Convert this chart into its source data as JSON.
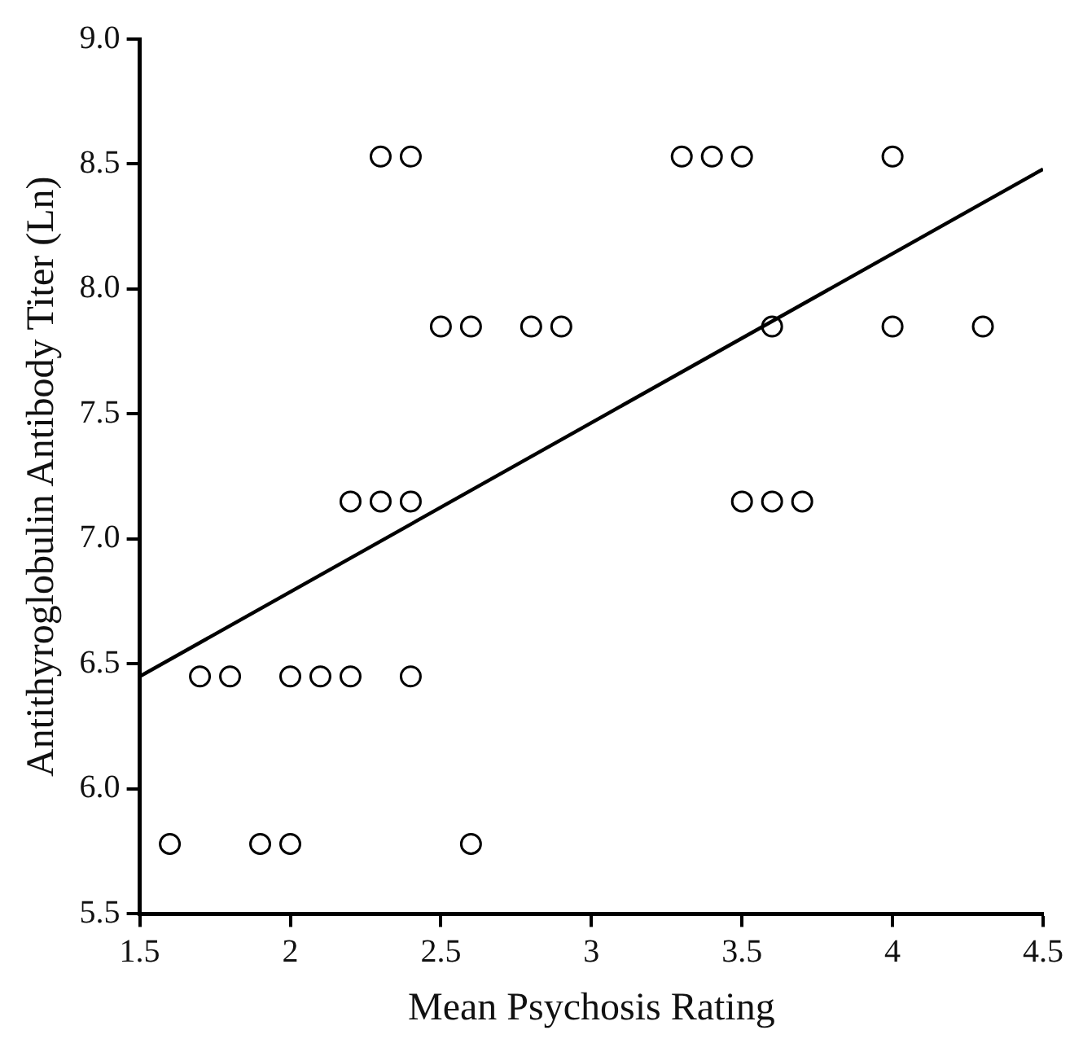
{
  "chart_data": {
    "type": "scatter",
    "xlabel": "Mean Psychosis Rating",
    "ylabel": "Antithyroglobulin Antibody Titer (Ln)",
    "xlim": [
      1.5,
      4.5
    ],
    "xticks": [
      1.5,
      2,
      2.5,
      3,
      3.5,
      4,
      4.5
    ],
    "ylim": [
      5.5,
      9.0
    ],
    "yticks": [
      {
        "value": 5.5,
        "label": "5.5"
      },
      {
        "value": 6,
        "label": "6.0"
      },
      {
        "value": 6.5,
        "label": "6.5"
      },
      {
        "value": 7,
        "label": "7.0"
      },
      {
        "value": 7.5,
        "label": "7.5"
      },
      {
        "value": 8,
        "label": "8.0"
      },
      {
        "value": 8.5,
        "label": "8.5"
      },
      {
        "value": 9,
        "label": "9.0"
      }
    ],
    "grid": false,
    "legend": false,
    "marker": "circle",
    "series": [
      {
        "color": "#000000",
        "x": [
          2.3,
          2.4,
          3.3,
          3.4,
          3.5,
          4.0,
          2.5,
          2.6,
          2.8,
          2.9,
          3.6,
          4.0,
          4.3,
          2.2,
          2.3,
          2.4,
          3.5,
          3.6,
          3.7,
          1.7,
          1.8,
          2.0,
          2.1,
          2.2,
          2.4,
          1.6,
          1.9,
          2.0,
          2.6
        ],
        "values": [
          8.53,
          8.53,
          8.53,
          8.53,
          8.53,
          8.53,
          7.85,
          7.85,
          7.85,
          7.85,
          7.85,
          7.85,
          7.85,
          7.15,
          7.15,
          7.15,
          7.15,
          7.15,
          7.15,
          6.45,
          6.45,
          6.45,
          6.45,
          6.45,
          6.45,
          5.78,
          5.78,
          5.78,
          5.78
        ]
      },
      {
        "type": "line",
        "color": "#000000",
        "x": [
          1.5,
          4.5
        ],
        "values": [
          6.45,
          8.48
        ],
        "marker": "none",
        "line_style": "solid"
      }
    ]
  }
}
